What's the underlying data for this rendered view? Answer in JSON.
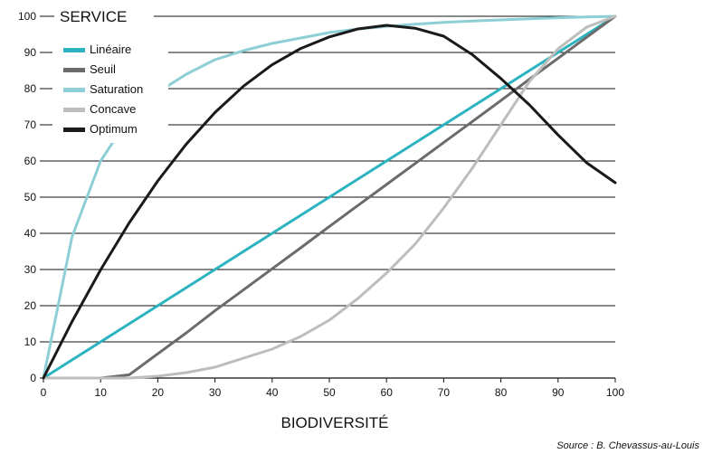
{
  "chart_data": {
    "type": "line",
    "title": "",
    "ylabel": "SERVICE",
    "xlabel": "BIODIVERSITÉ",
    "source": "Source : B. Chevassus-au-Louis",
    "xlim": [
      0,
      100
    ],
    "ylim": [
      0,
      100
    ],
    "x_ticks": [
      "0",
      "10",
      "20",
      "30",
      "40",
      "50",
      "60",
      "70",
      "80",
      "90",
      "100"
    ],
    "y_ticks": [
      "0",
      "10",
      "20",
      "30",
      "40",
      "50",
      "60",
      "70",
      "80",
      "90",
      "100"
    ],
    "grid": "horizontal",
    "legend_position": "top-left",
    "x": [
      0,
      5,
      10,
      15,
      20,
      25,
      30,
      35,
      40,
      45,
      50,
      55,
      60,
      65,
      70,
      75,
      80,
      85,
      90,
      95,
      100
    ],
    "series": [
      {
        "name": "Linéaire",
        "color": "#2bb3c0",
        "values": [
          0,
          5,
          10,
          15,
          20,
          25,
          30,
          35,
          40,
          45,
          50,
          55,
          60,
          65,
          70,
          75,
          80,
          85,
          90,
          95,
          100
        ]
      },
      {
        "name": "Seuil",
        "color": "#6b6b6b",
        "values": [
          0,
          0,
          0,
          0.9,
          6.7,
          12.5,
          18.6,
          24.4,
          30.2,
          36.0,
          41.9,
          47.7,
          53.5,
          59.3,
          65.1,
          70.9,
          76.7,
          82.6,
          88.4,
          94.2,
          100
        ]
      },
      {
        "name": "Saturation",
        "color": "#8ecfd5",
        "values": [
          0,
          39,
          60,
          72,
          79,
          84,
          88,
          90.5,
          92.5,
          94,
          95.5,
          96.5,
          97.2,
          97.8,
          98.3,
          98.7,
          99,
          99.3,
          99.6,
          99.8,
          100
        ]
      },
      {
        "name": "Concave",
        "color": "#bdbdbd",
        "values": [
          0,
          0,
          0,
          0,
          0.5,
          1.5,
          3,
          5.5,
          8,
          11.5,
          16,
          22,
          29,
          37,
          47,
          58,
          70,
          82,
          91,
          97,
          100
        ]
      },
      {
        "name": "Optimum",
        "color": "#1a1a1a",
        "values": [
          0,
          15.6,
          29.9,
          42.9,
          54.5,
          64.7,
          73.4,
          80.7,
          86.6,
          91.1,
          94.3,
          96.5,
          97.5,
          96.7,
          94.5,
          89.4,
          82.8,
          75.5,
          67.2,
          59.5,
          54
        ]
      }
    ]
  }
}
